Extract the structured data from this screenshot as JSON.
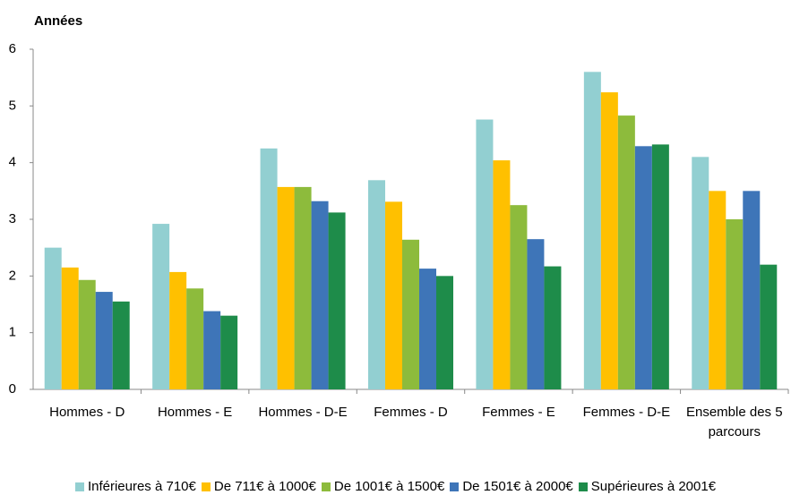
{
  "chart_data": {
    "type": "bar",
    "y_label": "Années",
    "categories": [
      "Hommes - D",
      "Hommes - E",
      "Hommes - D-E",
      "Femmes - D",
      "Femmes - E",
      "Femmes - D-E",
      "Ensemble des 5 parcours"
    ],
    "series": [
      {
        "name": "Inférieures à 710€",
        "color": "#92cfd1",
        "values": [
          2.5,
          2.92,
          4.25,
          3.69,
          4.76,
          5.6,
          4.1
        ]
      },
      {
        "name": "De 711€ à 1000€",
        "color": "#ffc000",
        "values": [
          2.15,
          2.07,
          3.57,
          3.31,
          4.04,
          5.24,
          3.5
        ]
      },
      {
        "name": "De 1001€ à 1500€",
        "color": "#8dbb3c",
        "values": [
          1.93,
          1.78,
          3.57,
          2.64,
          3.25,
          4.83,
          3.0
        ]
      },
      {
        "name": "De 1501€ à 2000€",
        "color": "#3e75b8",
        "values": [
          1.72,
          1.38,
          3.32,
          2.13,
          2.65,
          4.29,
          3.5
        ]
      },
      {
        "name": "Supérieures à 2001€",
        "color": "#1e8c4a",
        "values": [
          1.55,
          1.3,
          3.12,
          2.0,
          2.17,
          4.32,
          2.2
        ]
      }
    ],
    "ylim": [
      0,
      6
    ],
    "yticks": [
      0,
      1,
      2,
      3,
      4,
      5,
      6
    ],
    "grid": false,
    "legend": "bottom"
  }
}
